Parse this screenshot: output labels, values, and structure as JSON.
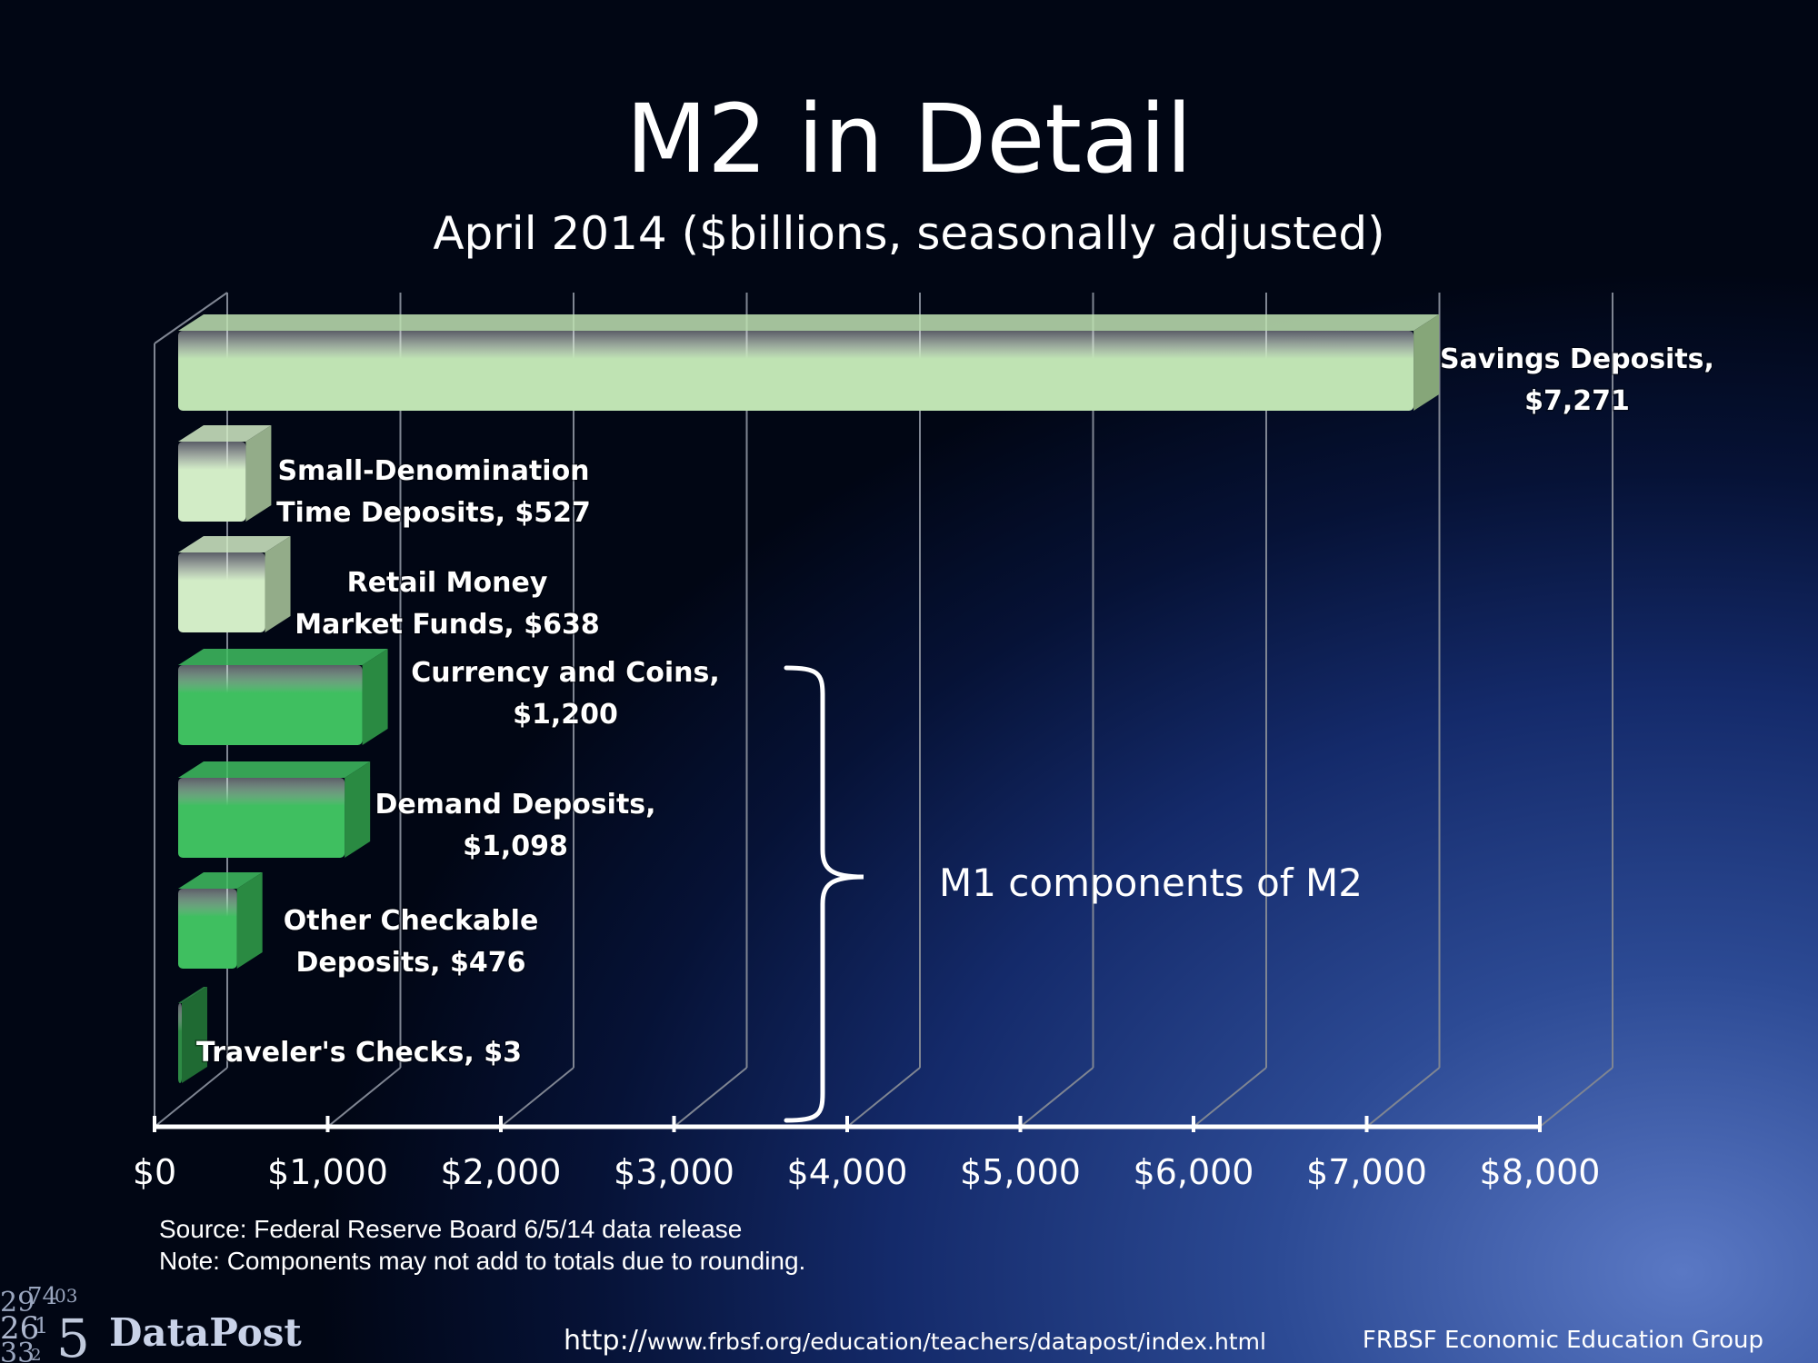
{
  "chart_data": {
    "type": "bar",
    "orientation": "horizontal",
    "title": "M2 in Detail",
    "subtitle": "April 2014 ($billions, seasonally adjusted)",
    "categories": [
      "Savings Deposits",
      "Small-Denomination Time Deposits",
      "Retail Money Market Funds",
      "Currency and Coins",
      "Demand Deposits",
      "Other Checkable Deposits",
      "Traveler's Checks"
    ],
    "values": [
      7271,
      527,
      638,
      1200,
      1098,
      476,
      3
    ],
    "labels": [
      [
        "Savings Deposits,",
        "$7,271"
      ],
      [
        "Small-Denomination",
        "Time Deposits, $527"
      ],
      [
        "Retail Money",
        "Market Funds, $638"
      ],
      [
        "Currency and Coins,",
        "$1,200"
      ],
      [
        "Demand Deposits,",
        "$1,098"
      ],
      [
        "Other Checkable",
        "Deposits, $476"
      ],
      [
        "Traveler's Checks, $3"
      ]
    ],
    "bar_colors": [
      "#bfe3b3",
      "#d2ecc6",
      "#d2ecc6",
      "#3fbf60",
      "#3fbf60",
      "#3fbf60",
      "#2e8a45"
    ],
    "bar_side_colors": [
      "#86a679",
      "#93ac89",
      "#93ac89",
      "#2a8a42",
      "#2a8a42",
      "#2a8a42",
      "#1f6a33"
    ],
    "xlim": [
      0,
      8000
    ],
    "x_ticks": [
      0,
      1000,
      2000,
      3000,
      4000,
      5000,
      6000,
      7000,
      8000
    ],
    "x_tick_labels": [
      "$0",
      "$1,000",
      "$2,000",
      "$3,000",
      "$4,000",
      "$5,000",
      "$6,000",
      "$7,000",
      "$8,000"
    ],
    "grid": true,
    "annotation": {
      "text": "M1 components of M2",
      "brackets_categories": [
        "Currency and Coins",
        "Demand Deposits",
        "Other Checkable Deposits",
        "Traveler's Checks"
      ]
    }
  },
  "footer": {
    "source": "Source: Federal Reserve Board  6/5/14 data release",
    "note": "Note: Components may not add to totals due to rounding.",
    "brand": "DataPost",
    "url_prefix": "http://",
    "url_rest": "www.frbsf.org/education/teachers/datapost/index.html",
    "group": "FRBSF Economic Education Group"
  }
}
